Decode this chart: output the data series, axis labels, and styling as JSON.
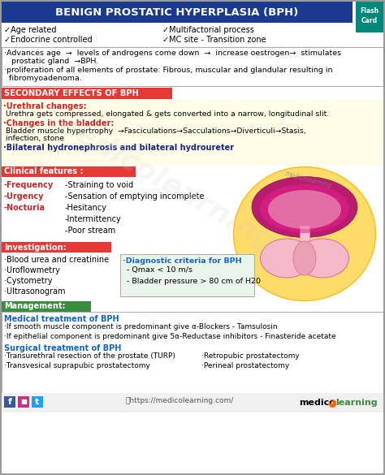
{
  "title": "BENIGN PROSTATIC HYPERPLASIA (BPH)",
  "title_bg": "#1a3a8f",
  "title_color": "#ffffff",
  "bg_color": "#ffffff",
  "section_red_bg": "#e53935",
  "section_green_bg": "#388e3c",
  "light_yellow_bg": "#fffde7",
  "light_green_bg": "#e8f5e9",
  "border_color": "#aaaaaa",
  "checks": [
    "✓Age related",
    "✓Multifactorial process",
    "✓Endocrine controlled",
    "✓MC site - Transition zone"
  ],
  "path1": "·Advances age  →  levels of androgens come down  →  increase oestrogen→  stimulates",
  "path1b": "   prostatic gland  →BPH.",
  "path2": "·proliferation of all elements of prostate: Fibrous, muscular and glandular resulting in",
  "path2b": "  fibromyoadenoma.",
  "sec_title": "SECONDARY EFFECTS OF BPH",
  "ure_title": "·Urethral changes:",
  "ure_body": " Urethra gets compressed, elongated & gets converted into a narrow, longitudinal slit.",
  "bladder_title": "·Changes in the bladder:",
  "bladder_body1": " Bladder muscle hypertrophy  →Fasciculations→Sacculations→Diverticuli→Stasis,",
  "bladder_body2": " infection, stone",
  "bilateral": "·Bilateral hydronephrosis and bilateral hydroureter",
  "clin_title": "Clinical features :",
  "clin_left": [
    "-Frequency",
    "-Urgency",
    "-Nocturia"
  ],
  "clin_right": [
    "-Straining to void",
    "-Sensation of emptying incomplete",
    "-Hesitancy",
    "-Intermittency",
    "-Poor stream"
  ],
  "inv_title": "Investigation:",
  "inv_left": [
    "·Blood urea and creatinine",
    "·Uroflowmetry",
    "·Cystometry",
    "·Ultrasonogram"
  ],
  "diag_title": "·Diagnostic criteria for BPH",
  "diag_items": [
    "- Qmax < 10 m/s",
    "- Bladder pressure > 80 cm of H20"
  ],
  "mgmt_title": "Management:",
  "med_title": "Medical treatment of BPH",
  "med_items": [
    "·If smooth muscle component is predominant give α-Blockers - Tamsulosin",
    "·If epithelial component is predominant give 5α-Reductase inhibitors - Finasteride acetate"
  ],
  "surg_title": "Surgical treatment of BPH",
  "surg_left": [
    "·Transurethral resection of the prostate (TURP)",
    "·Transvesical suprapubic prostatectomy"
  ],
  "surg_right": [
    "·Retropubic prostatectomy",
    "·Perineal prostatectomy"
  ],
  "footer_url": "ⓘhttps://medicolearning.com/",
  "footer_brand1": "medico",
  "footer_brand2": "learning",
  "watermark": "medicolearning",
  "flash_lines": [
    "Flash",
    "Card"
  ],
  "flash_bg": "#00897b"
}
